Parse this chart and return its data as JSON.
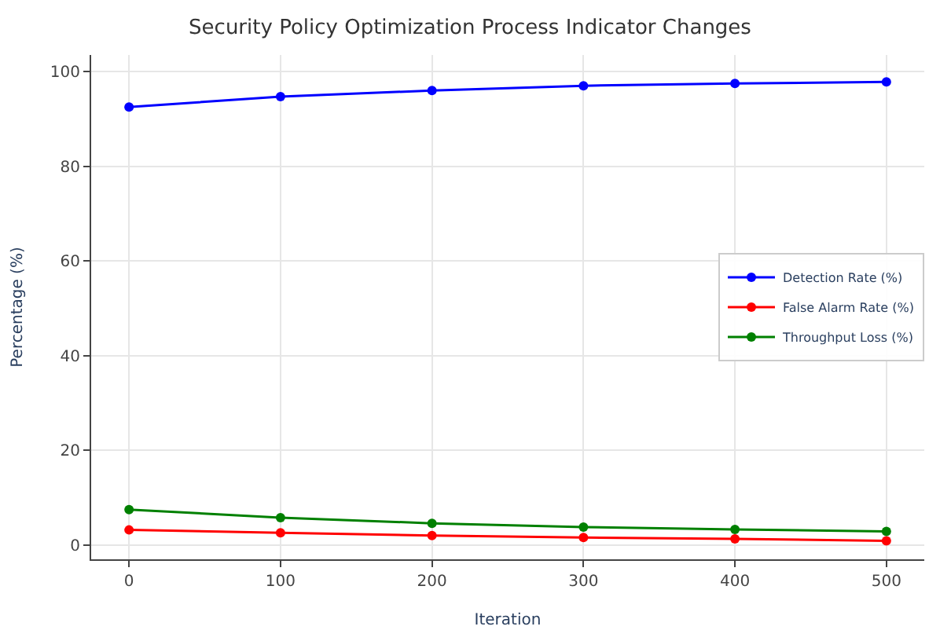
{
  "chart_data": {
    "type": "line",
    "title": "Security Policy Optimization Process Indicator Changes",
    "xlabel": "Iteration",
    "ylabel": "Percentage (%)",
    "x": [
      0,
      100,
      200,
      300,
      400,
      500
    ],
    "series": [
      {
        "name": "Detection Rate (%)",
        "color": "#0000ff",
        "values": [
          92.5,
          94.7,
          96.0,
          97.0,
          97.5,
          97.8
        ]
      },
      {
        "name": "False Alarm Rate (%)",
        "color": "#ff0000",
        "values": [
          3.2,
          2.6,
          2.0,
          1.6,
          1.3,
          0.9
        ]
      },
      {
        "name": "Throughput Loss (%)",
        "color": "#008000",
        "values": [
          7.5,
          5.8,
          4.6,
          3.8,
          3.3,
          2.9
        ]
      }
    ],
    "xlim": [
      -25,
      525
    ],
    "xticks": [
      0,
      100,
      200,
      300,
      400,
      500
    ],
    "ylim": [
      -3,
      103.5
    ],
    "yticks": [
      0,
      20,
      40,
      60,
      80,
      100
    ],
    "grid": true,
    "legend": "right",
    "marker": "circle",
    "line_style": "solid"
  }
}
